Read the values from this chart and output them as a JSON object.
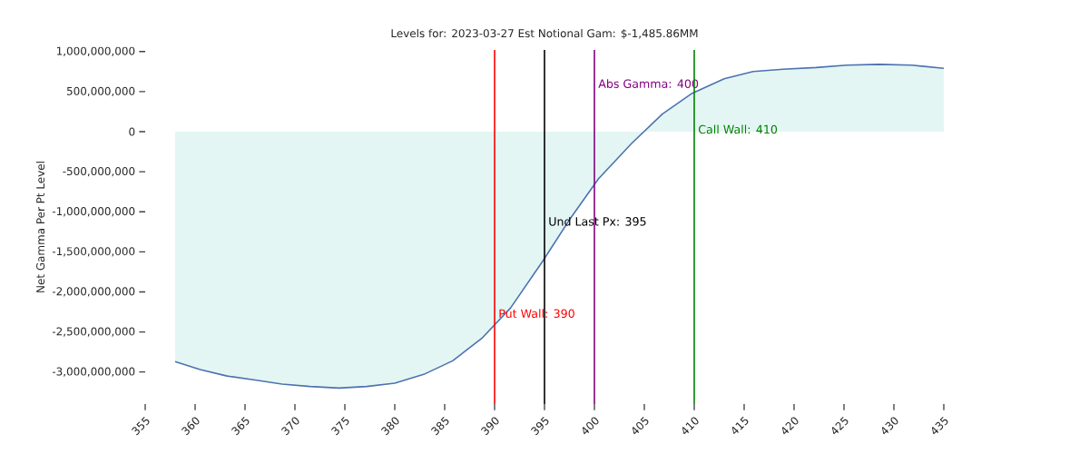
{
  "chart_data": {
    "type": "area",
    "title": "Levels for: 2023-03-27 Est Notional Gam: $-1,485.86MM",
    "ylabel": "Net Gamma Per Pt Level",
    "x": [
      358.0,
      360.5,
      363.2,
      366.0,
      368.7,
      371.5,
      374.4,
      377.2,
      380.0,
      382.9,
      385.8,
      388.8,
      391.6,
      394.8,
      397.5,
      400.4,
      403.7,
      406.8,
      409.8,
      413.0,
      415.9,
      418.9,
      422.2,
      425.3,
      428.5,
      431.8,
      435.0
    ],
    "series": [
      {
        "color": "#4c72b0",
        "values": [
          -2870000000,
          -2970000000,
          -3050000000,
          -3100000000,
          -3150000000,
          -3180000000,
          -3200000000,
          -3180000000,
          -3140000000,
          -3030000000,
          -2860000000,
          -2570000000,
          -2200000000,
          -1620000000,
          -1100000000,
          -590000000,
          -150000000,
          220000000,
          480000000,
          660000000,
          750000000,
          780000000,
          800000000,
          830000000,
          840000000,
          830000000,
          790000000
        ]
      }
    ],
    "xlim": [
      355,
      435
    ],
    "ylim": [
      -3400000000,
      1020000000
    ],
    "xticks": [
      355,
      360,
      365,
      370,
      375,
      380,
      385,
      390,
      395,
      400,
      405,
      410,
      415,
      420,
      425,
      430,
      435
    ],
    "yticks": [
      {
        "value": 1000000000,
        "label": "1,000,000,000"
      },
      {
        "value": 500000000,
        "label": "500,000,000"
      },
      {
        "value": 0,
        "label": "0"
      },
      {
        "value": -500000000,
        "label": "-500,000,000"
      },
      {
        "value": -1000000000,
        "label": "-1,000,000,000"
      },
      {
        "value": -1500000000,
        "label": "-1,500,000,000"
      },
      {
        "value": -2000000000,
        "label": "-2,000,000,000"
      },
      {
        "value": -2500000000,
        "label": "-2,500,000,000"
      },
      {
        "value": -3000000000,
        "label": "-3,000,000,000"
      }
    ],
    "ref_lines": [
      {
        "axis": "x",
        "value": 390,
        "label": "Put Wall: 390",
        "color": "#ff0000"
      },
      {
        "axis": "x",
        "value": 395,
        "label": "Und Last Px: 395",
        "color": "#000000"
      },
      {
        "axis": "x",
        "value": 400,
        "label": "Abs Gamma: 400",
        "color": "#800080"
      },
      {
        "axis": "x",
        "value": 410,
        "label": "Call Wall: 410",
        "color": "#008000"
      }
    ],
    "grid": false
  }
}
